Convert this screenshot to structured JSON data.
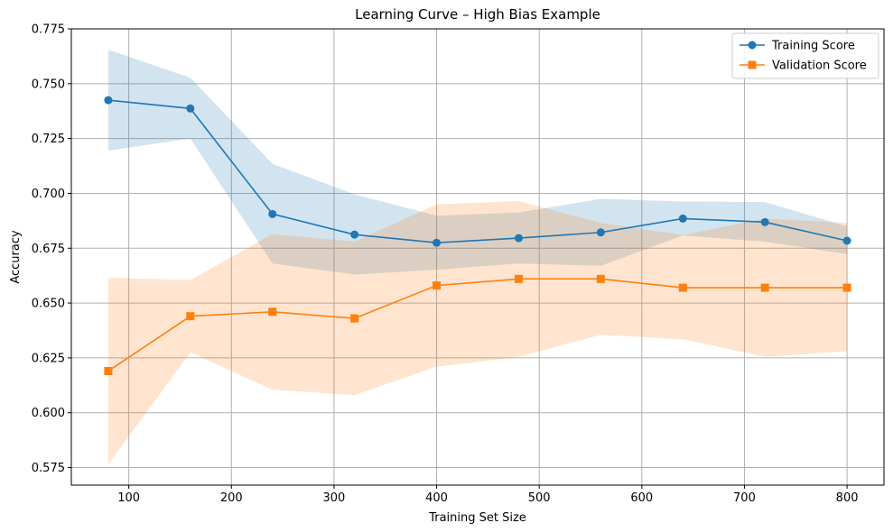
{
  "chart_data": {
    "type": "line",
    "title": "Learning Curve – High Bias Example",
    "xlabel": "Training Set Size",
    "ylabel": "Accuracy",
    "xlim": [
      44,
      836
    ],
    "ylim": [
      0.567,
      0.775
    ],
    "xticks": [
      100,
      200,
      300,
      400,
      500,
      600,
      700,
      800
    ],
    "yticks": [
      0.575,
      0.6,
      0.625,
      0.65,
      0.675,
      0.7,
      0.725,
      0.75,
      0.775
    ],
    "grid": true,
    "legend_position": "top-right",
    "x": [
      80,
      160,
      240,
      320,
      400,
      480,
      560,
      640,
      720,
      800
    ],
    "series": [
      {
        "name": "Training Score",
        "color": "#1f77b4",
        "marker": "circle",
        "values": [
          0.7425,
          0.7387,
          0.6906,
          0.6812,
          0.6775,
          0.6796,
          0.6822,
          0.6885,
          0.6869,
          0.6784
        ],
        "band_upper": [
          0.7655,
          0.7527,
          0.7135,
          0.6995,
          0.6898,
          0.6913,
          0.6975,
          0.6963,
          0.696,
          0.685
        ],
        "band_lower": [
          0.7195,
          0.725,
          0.668,
          0.663,
          0.6652,
          0.668,
          0.667,
          0.6808,
          0.678,
          0.6723
        ],
        "band_color": "#c6dcec"
      },
      {
        "name": "Validation Score",
        "color": "#ff7f0e",
        "marker": "square",
        "values": [
          0.619,
          0.644,
          0.646,
          0.643,
          0.658,
          0.661,
          0.661,
          0.657,
          0.657,
          0.657
        ],
        "band_upper": [
          0.6615,
          0.6605,
          0.6815,
          0.678,
          0.695,
          0.6965,
          0.6865,
          0.681,
          0.6885,
          0.6865
        ],
        "band_lower": [
          0.5765,
          0.6275,
          0.6105,
          0.608,
          0.621,
          0.6255,
          0.6355,
          0.6335,
          0.6255,
          0.628
        ],
        "band_color": "#ffdcbf"
      }
    ]
  }
}
